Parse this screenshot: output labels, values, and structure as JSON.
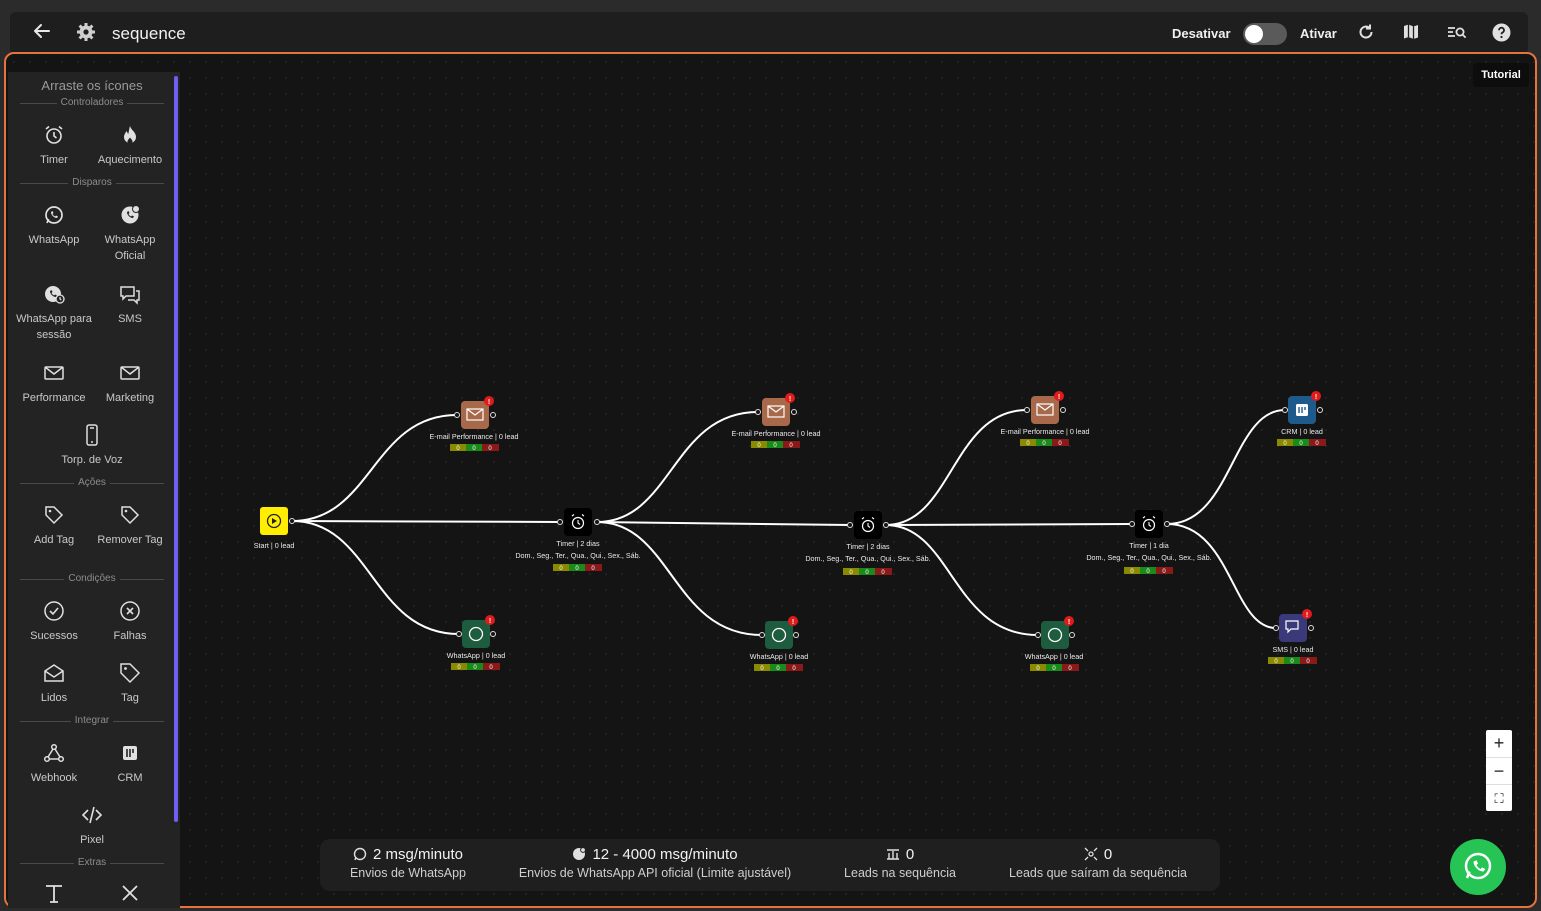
{
  "header": {
    "title": "sequence",
    "deactivate_label": "Desativar",
    "activate_label": "Ativar",
    "tooltip": "Tutorial"
  },
  "palette": {
    "heading": "Arraste os ícones",
    "sections": {
      "controllers": "Controladores",
      "sends": "Disparos",
      "actions": "Ações",
      "conditions": "Condições",
      "integrate": "Integrar",
      "extras": "Extras"
    },
    "items": {
      "timer": "Timer",
      "warmup": "Aquecimento",
      "whatsapp": "WhatsApp",
      "whatsapp_official": "WhatsApp Oficial",
      "whatsapp_session": "WhatsApp para sessão",
      "sms": "SMS",
      "performance": "Performance",
      "marketing": "Marketing",
      "voice": "Torp. de Voz",
      "add_tag": "Add Tag",
      "remove_tag": "Remover Tag",
      "success": "Sucessos",
      "failures": "Falhas",
      "read": "Lidos",
      "tag": "Tag",
      "webhook": "Webhook",
      "crm": "CRM",
      "pixel": "Pixel"
    }
  },
  "flow": {
    "start": "Start | 0 lead",
    "days_line": "Dom., Seg., Ter., Qua., Qui., Sex., Sáb.",
    "nodes": [
      {
        "id": "email1",
        "label": "E-mail Performance | 0 lead"
      },
      {
        "id": "wa1",
        "label": "WhatsApp | 0 lead"
      },
      {
        "id": "timer1",
        "label": "Timer | 2 dias"
      },
      {
        "id": "email2",
        "label": "E-mail Performance | 0 lead"
      },
      {
        "id": "wa2",
        "label": "WhatsApp | 0 lead"
      },
      {
        "id": "timer2",
        "label": "Timer | 2 dias"
      },
      {
        "id": "email3",
        "label": "E-mail Performance | 0 lead"
      },
      {
        "id": "wa3",
        "label": "WhatsApp | 0 lead"
      },
      {
        "id": "timer3",
        "label": "Timer | 1 dia"
      },
      {
        "id": "crm",
        "label": "CRM | 0 lead"
      },
      {
        "id": "sms",
        "label": "SMS | 0 lead"
      }
    ],
    "counter": [
      "0",
      "0",
      "0"
    ],
    "warning": "!"
  },
  "stats": [
    {
      "value": "2 msg/minuto",
      "label": "Envios de WhatsApp"
    },
    {
      "value": "12 - 4000 msg/minuto",
      "label": "Envios de WhatsApp API oficial (Limite ajustável)"
    },
    {
      "value": "0",
      "label": "Leads na sequência"
    },
    {
      "value": "0",
      "label": "Leads que saíram da sequência"
    }
  ],
  "zoom": {
    "in": "+",
    "out": "−",
    "fit": "⛶"
  },
  "colors": {
    "accent_border": "#e4733d",
    "start_node": "#ffee00",
    "email_node": "#a8684a",
    "whatsapp_node": "#1e5c3f",
    "crm_node": "#1f5b8a",
    "sms_node": "#3a3a7a",
    "warning": "#e01b1b",
    "scrollbar": "#6b63f0",
    "fab": "#25c454"
  }
}
